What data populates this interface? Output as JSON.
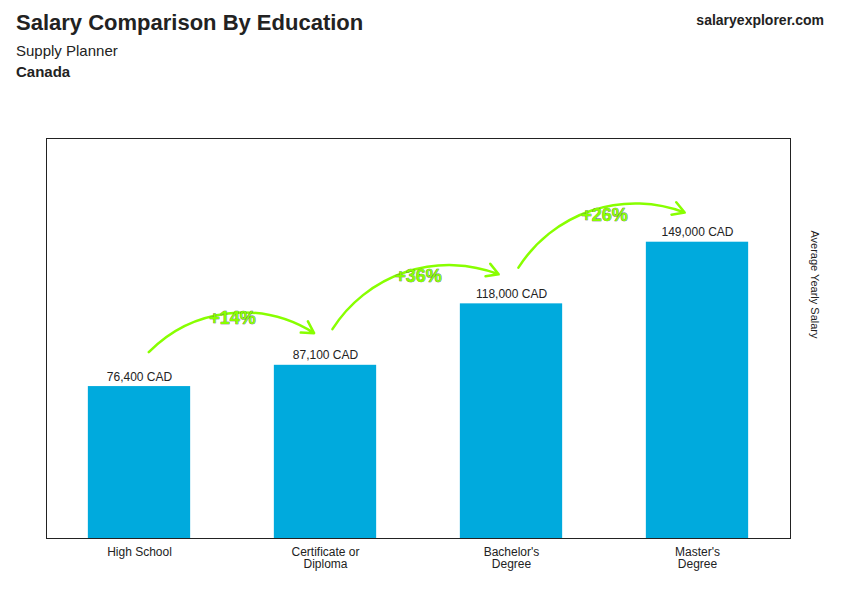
{
  "chart_data": {
    "type": "bar",
    "title": "Salary Comparison By Education",
    "subtitle": "Supply Planner",
    "country": "Canada",
    "branding": [
      "salary",
      "explorer",
      ".com"
    ],
    "ylabel": "Average Yearly Salary",
    "categories": [
      "High School",
      "Certificate or\nDiploma",
      "Bachelor's\nDegree",
      "Master's\nDegree"
    ],
    "values": [
      76400,
      87100,
      118000,
      149000
    ],
    "value_labels": [
      "76,400 CAD",
      "87,100 CAD",
      "118,000 CAD",
      "149,000 CAD"
    ],
    "data_labels": true,
    "color": "#00aadd",
    "annotations": [
      {
        "text": "+14%",
        "color": "#88ff00"
      },
      {
        "text": "+36%",
        "color": "#88ff00"
      },
      {
        "text": "+26%",
        "color": "#88ff00"
      }
    ],
    "ylim": [
      0,
      201150
    ],
    "tick_labels": "x",
    "grid": false
  }
}
